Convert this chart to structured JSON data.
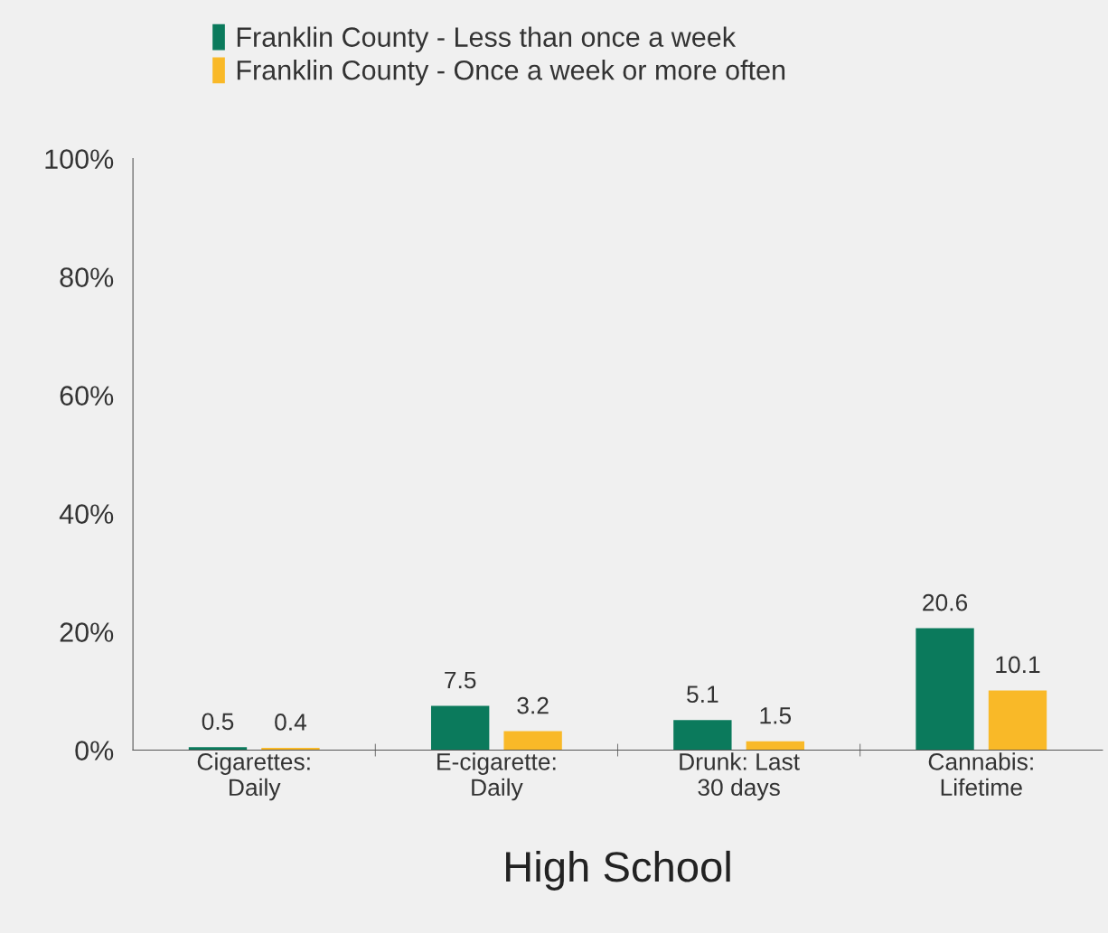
{
  "chart_data": {
    "type": "bar",
    "xlabel": "High School",
    "categories": [
      "Cigarettes:\nDaily",
      "E-cigarette:\nDaily",
      "Drunk: Last\n30 days",
      "Cannabis:\nLifetime"
    ],
    "series": [
      {
        "name": "Franklin County - Less than once a week",
        "color": "#0b7a5c",
        "values": [
          0.5,
          7.5,
          5.1,
          20.6
        ]
      },
      {
        "name": "Franklin County - Once a week or more often",
        "color": "#f9b928",
        "values": [
          0.4,
          3.2,
          1.5,
          10.1
        ]
      }
    ],
    "ylim": [
      0,
      100
    ],
    "yticks": [
      {
        "value": 0,
        "label": "0%"
      },
      {
        "value": 20,
        "label": "20%"
      },
      {
        "value": 40,
        "label": "40%"
      },
      {
        "value": 60,
        "label": "60%"
      },
      {
        "value": 80,
        "label": "80%"
      },
      {
        "value": 100,
        "label": "100%"
      }
    ],
    "data_labels": true,
    "grid": false,
    "legend": "top"
  }
}
